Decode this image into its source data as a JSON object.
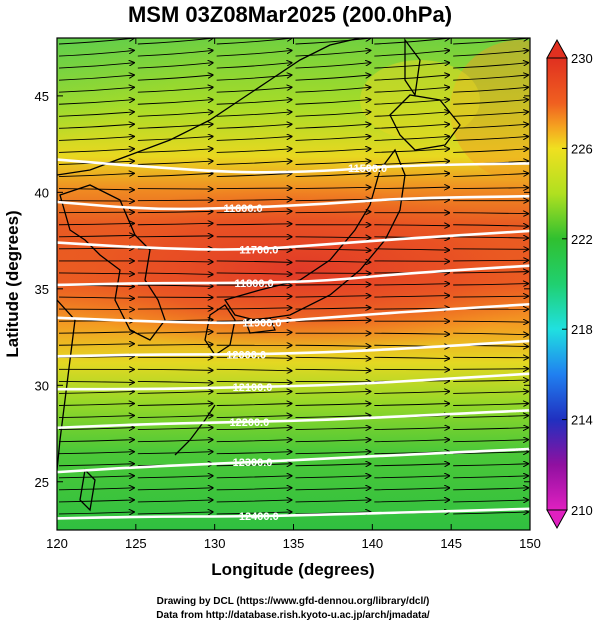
{
  "chart_data": {
    "type": "heatmap",
    "title": "MSM 03Z08Mar2025 (200.0hPa)",
    "xlabel": "Longitude (degrees)",
    "ylabel": "Latitude  (degrees)",
    "xlim": [
      120,
      150
    ],
    "ylim": [
      22.5,
      48
    ],
    "x_ticks": [
      120,
      125,
      130,
      135,
      140,
      145,
      150
    ],
    "y_ticks": [
      25,
      30,
      35,
      40,
      45
    ],
    "colorbar": {
      "min": 210,
      "max": 230,
      "ticks": [
        210,
        214,
        218,
        222,
        226,
        230
      ],
      "stops": [
        {
          "value": 210,
          "color": "#e020c0"
        },
        {
          "value": 212,
          "color": "#9010a0"
        },
        {
          "value": 214,
          "color": "#2030c0"
        },
        {
          "value": 216,
          "color": "#2080f0"
        },
        {
          "value": 218,
          "color": "#20e0e0"
        },
        {
          "value": 220,
          "color": "#20d070"
        },
        {
          "value": 222,
          "color": "#30c030"
        },
        {
          "value": 224,
          "color": "#b0e020"
        },
        {
          "value": 226,
          "color": "#f0e020"
        },
        {
          "value": 227,
          "color": "#f5a020"
        },
        {
          "value": 228,
          "color": "#f06020"
        },
        {
          "value": 230,
          "color": "#e03020"
        }
      ]
    },
    "contours": [
      {
        "label": "11500.0",
        "points": [
          [
            120,
            41.7
          ],
          [
            126,
            41.3
          ],
          [
            132,
            41.0
          ],
          [
            137,
            41.1
          ],
          [
            142,
            41.4
          ],
          [
            150,
            41.5
          ]
        ],
        "label_lon": 139.7
      },
      {
        "label": "11600.0",
        "points": [
          [
            120,
            39.5
          ],
          [
            126,
            39.1
          ],
          [
            132,
            39.2
          ],
          [
            137,
            39.4
          ],
          [
            142,
            39.7
          ],
          [
            150,
            39.8
          ]
        ],
        "label_lon": 131.8
      },
      {
        "label": "11700.0",
        "points": [
          [
            120,
            37.4
          ],
          [
            126,
            37.1
          ],
          [
            132,
            37.0
          ],
          [
            137,
            37.3
          ],
          [
            142,
            37.6
          ],
          [
            150,
            38.0
          ]
        ],
        "label_lon": 132.8
      },
      {
        "label": "11800.0",
        "points": [
          [
            120,
            35.2
          ],
          [
            126,
            35.3
          ],
          [
            132,
            35.3
          ],
          [
            137,
            35.4
          ],
          [
            142,
            35.8
          ],
          [
            150,
            36.2
          ]
        ],
        "label_lon": 132.5
      },
      {
        "label": "11900.0",
        "points": [
          [
            120,
            33.5
          ],
          [
            126,
            33.3
          ],
          [
            132,
            33.2
          ],
          [
            137,
            33.5
          ],
          [
            142,
            33.8
          ],
          [
            150,
            34.2
          ]
        ],
        "label_lon": 133.0
      },
      {
        "label": "12000.0",
        "points": [
          [
            120,
            31.5
          ],
          [
            126,
            31.6
          ],
          [
            132,
            31.6
          ],
          [
            137,
            31.7
          ],
          [
            142,
            31.9
          ],
          [
            150,
            32.3
          ]
        ],
        "label_lon": 132.0
      },
      {
        "label": "12100.0",
        "points": [
          [
            120,
            29.8
          ],
          [
            126,
            29.8
          ],
          [
            132,
            29.9
          ],
          [
            137,
            30.0
          ],
          [
            142,
            30.2
          ],
          [
            150,
            30.6
          ]
        ],
        "label_lon": 132.4
      },
      {
        "label": "12200.0",
        "points": [
          [
            120,
            27.8
          ],
          [
            126,
            28.0
          ],
          [
            132,
            28.1
          ],
          [
            137,
            28.2
          ],
          [
            142,
            28.4
          ],
          [
            150,
            28.7
          ]
        ],
        "label_lon": 132.2
      },
      {
        "label": "12300.0",
        "points": [
          [
            120,
            25.5
          ],
          [
            126,
            25.8
          ],
          [
            132,
            26.0
          ],
          [
            137,
            26.2
          ],
          [
            142,
            26.4
          ],
          [
            150,
            26.7
          ]
        ],
        "label_lon": 132.4
      },
      {
        "label": "12400.0",
        "points": [
          [
            120,
            23.1
          ],
          [
            126,
            23.2
          ],
          [
            132,
            23.2
          ],
          [
            137,
            23.3
          ],
          [
            142,
            23.4
          ],
          [
            150,
            23.6
          ]
        ],
        "label_lon": 132.8
      }
    ]
  },
  "credits": {
    "line1": "Drawing by DCL (https://www.gfd-dennou.org/library/dcl/)",
    "line2": "Data from http://database.rish.kyoto-u.ac.jp/arch/jmadata/"
  }
}
